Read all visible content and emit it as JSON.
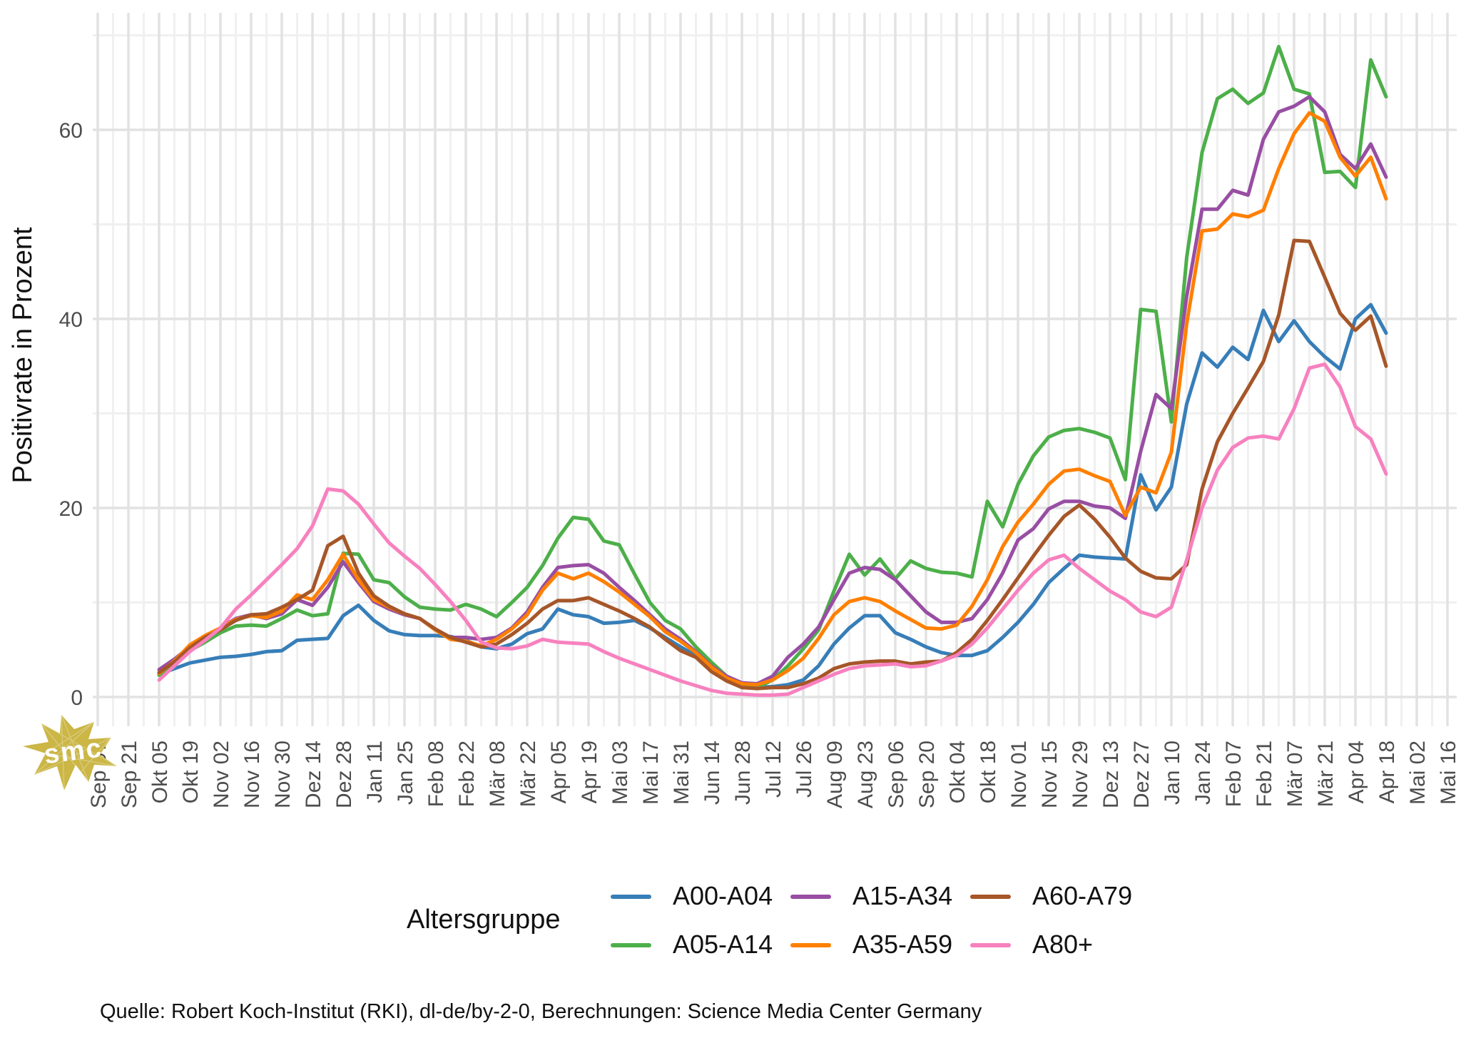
{
  "y_axis": {
    "label": "Positivrate in Prozent",
    "tick_labels": [
      "0",
      "20",
      "40",
      "60"
    ]
  },
  "x_axis": {
    "tick_labels": [
      "Sep 07",
      "Sep 21",
      "Okt 05",
      "Okt 19",
      "Nov 02",
      "Nov 16",
      "Nov 30",
      "Dez 14",
      "Dez 28",
      "Jan 11",
      "Jan 25",
      "Feb 08",
      "Feb 22",
      "Mär 08",
      "Mär 22",
      "Apr 05",
      "Apr 19",
      "Mai 03",
      "Mai 17",
      "Mai 31",
      "Jun 14",
      "Jun 28",
      "Jul 12",
      "Jul 26",
      "Aug 09",
      "Aug 23",
      "Sep 06",
      "Sep 20",
      "Okt 04",
      "Okt 18",
      "Nov 01",
      "Nov 15",
      "Nov 29",
      "Dez 13",
      "Dez 27",
      "Jan 10",
      "Jan 24",
      "Feb 07",
      "Feb 21",
      "Mär 07",
      "Mär 21",
      "Apr 04",
      "Apr 18",
      "Mai 02",
      "Mai 16"
    ]
  },
  "legend": {
    "title": "Altersgruppe",
    "items": [
      {
        "label": "A00-A04",
        "color": "#377EB8",
        "col": 0,
        "row": 0
      },
      {
        "label": "A05-A14",
        "color": "#4DAF4A",
        "col": 0,
        "row": 1
      },
      {
        "label": "A15-A34",
        "color": "#984EA3",
        "col": 1,
        "row": 0
      },
      {
        "label": "A35-A59",
        "color": "#FF7F00",
        "col": 1,
        "row": 1
      },
      {
        "label": "A60-A79",
        "color": "#A65628",
        "col": 2,
        "row": 0
      },
      {
        "label": "A80+",
        "color": "#F781BF",
        "col": 2,
        "row": 1
      }
    ]
  },
  "caption": "Quelle: Robert Koch-Institut (RKI), dl-de/by-2-0, Berechnungen: Science Media Center Germany",
  "watermark": {
    "text": "smc",
    "color": "#CBB646"
  },
  "chart_data": {
    "type": "line",
    "title": "",
    "xlabel": "",
    "ylabel": "Positivrate in Prozent",
    "legend_title": "Altersgruppe",
    "legend_position": "bottom",
    "grid": true,
    "ylim": [
      -3,
      72
    ],
    "yticks_major": [
      0,
      20,
      40,
      60
    ],
    "yticks_minor": [
      10,
      30,
      50,
      70
    ],
    "x_tick_labels": [
      "Sep 07",
      "Sep 21",
      "Okt 05",
      "Okt 19",
      "Nov 02",
      "Nov 16",
      "Nov 30",
      "Dez 14",
      "Dez 28",
      "Jan 11",
      "Jan 25",
      "Feb 08",
      "Feb 22",
      "Mär 08",
      "Mär 22",
      "Apr 05",
      "Apr 19",
      "Mai 03",
      "Mai 17",
      "Mai 31",
      "Jun 14",
      "Jun 28",
      "Jul 12",
      "Jul 26",
      "Aug 09",
      "Aug 23",
      "Sep 06",
      "Sep 20",
      "Okt 04",
      "Okt 18",
      "Nov 01",
      "Nov 15",
      "Nov 29",
      "Dez 13",
      "Dez 27",
      "Jan 10",
      "Jan 24",
      "Feb 07",
      "Feb 21",
      "Mär 07",
      "Mär 21",
      "Apr 04",
      "Apr 18",
      "Mai 02",
      "Mai 16"
    ],
    "x_weeks_per_tick": 2,
    "data_start_tick_index": 2,
    "x": [
      "2020-10-05",
      "2020-10-12",
      "2020-10-19",
      "2020-10-26",
      "2020-11-02",
      "2020-11-09",
      "2020-11-16",
      "2020-11-23",
      "2020-11-30",
      "2020-12-07",
      "2020-12-14",
      "2020-12-21",
      "2020-12-28",
      "2021-01-04",
      "2021-01-11",
      "2021-01-18",
      "2021-01-25",
      "2021-02-01",
      "2021-02-08",
      "2021-02-15",
      "2021-02-22",
      "2021-03-01",
      "2021-03-08",
      "2021-03-15",
      "2021-03-22",
      "2021-03-29",
      "2021-04-05",
      "2021-04-12",
      "2021-04-19",
      "2021-04-26",
      "2021-05-03",
      "2021-05-10",
      "2021-05-17",
      "2021-05-24",
      "2021-05-31",
      "2021-06-07",
      "2021-06-14",
      "2021-06-21",
      "2021-06-28",
      "2021-07-05",
      "2021-07-12",
      "2021-07-19",
      "2021-07-26",
      "2021-08-02",
      "2021-08-09",
      "2021-08-16",
      "2021-08-23",
      "2021-08-30",
      "2021-09-06",
      "2021-09-13",
      "2021-09-20",
      "2021-09-27",
      "2021-10-04",
      "2021-10-11",
      "2021-10-18",
      "2021-10-25",
      "2021-11-01",
      "2021-11-08",
      "2021-11-15",
      "2021-11-22",
      "2021-11-29",
      "2021-12-06",
      "2021-12-13",
      "2021-12-20",
      "2021-12-27",
      "2022-01-03",
      "2022-01-10",
      "2022-01-17",
      "2022-01-24",
      "2022-01-31",
      "2022-02-07",
      "2022-02-14",
      "2022-02-21",
      "2022-02-28",
      "2022-03-07",
      "2022-03-14",
      "2022-03-21",
      "2022-03-28",
      "2022-04-04",
      "2022-04-11",
      "2022-04-18"
    ],
    "series": [
      {
        "name": "A00-A04",
        "color": "#377EB8",
        "values": [
          2.4,
          3.0,
          3.6,
          3.9,
          4.2,
          4.3,
          4.5,
          4.8,
          4.9,
          6.0,
          6.1,
          6.2,
          8.6,
          9.7,
          8.1,
          7.0,
          6.6,
          6.5,
          6.5,
          6.4,
          6.0,
          5.3,
          5.1,
          5.6,
          6.7,
          7.2,
          9.3,
          8.7,
          8.5,
          7.8,
          7.9,
          8.1,
          7.3,
          6.3,
          5.3,
          4.4,
          3.2,
          2.0,
          1.3,
          1.0,
          1.1,
          1.3,
          1.8,
          3.3,
          5.6,
          7.3,
          8.6,
          8.6,
          6.8,
          6.1,
          5.3,
          4.7,
          4.4,
          4.4,
          4.9,
          6.3,
          7.9,
          9.8,
          12.1,
          13.6,
          15.0,
          14.8,
          14.7,
          14.6,
          23.5,
          19.8,
          22.2,
          31.0,
          36.4,
          34.9,
          37.0,
          35.7,
          40.9,
          37.6,
          39.8,
          37.6,
          36.0,
          34.7,
          40.0,
          41.5,
          38.5
        ]
      },
      {
        "name": "A05-A14",
        "color": "#4DAF4A",
        "values": [
          2.3,
          3.5,
          4.9,
          5.8,
          6.8,
          7.5,
          7.6,
          7.5,
          8.3,
          9.2,
          8.6,
          8.8,
          15.2,
          15.1,
          12.4,
          12.1,
          10.6,
          9.5,
          9.3,
          9.2,
          9.8,
          9.3,
          8.5,
          10.0,
          11.6,
          13.9,
          16.8,
          19.0,
          18.8,
          16.5,
          16.1,
          13.0,
          10.0,
          8.1,
          7.2,
          5.3,
          3.7,
          2.2,
          1.3,
          1.0,
          1.8,
          3.3,
          5.1,
          7.1,
          11.2,
          15.1,
          12.9,
          14.6,
          12.5,
          14.4,
          13.6,
          13.2,
          13.1,
          12.7,
          20.7,
          18.0,
          22.5,
          25.5,
          27.5,
          28.2,
          28.4,
          28.0,
          27.4,
          23.0,
          41.0,
          40.8,
          29.1,
          46.5,
          57.6,
          63.3,
          64.3,
          62.8,
          63.9,
          68.8,
          64.3,
          63.8,
          55.5,
          55.6,
          53.9,
          67.4,
          63.5
        ]
      },
      {
        "name": "A15-A34",
        "color": "#984EA3",
        "values": [
          2.9,
          4.0,
          5.3,
          6.2,
          7.3,
          8.3,
          8.7,
          8.3,
          8.8,
          10.3,
          9.7,
          11.6,
          14.3,
          12.1,
          10.1,
          9.3,
          8.7,
          8.3,
          7.1,
          6.3,
          6.3,
          6.1,
          6.3,
          7.3,
          9.0,
          11.6,
          13.7,
          13.9,
          14.0,
          13.1,
          11.6,
          10.2,
          8.7,
          7.2,
          6.1,
          4.8,
          3.3,
          2.2,
          1.5,
          1.4,
          2.2,
          4.2,
          5.6,
          7.4,
          10.3,
          13.1,
          13.7,
          13.5,
          12.4,
          10.7,
          9.0,
          7.9,
          7.9,
          8.3,
          10.3,
          13.1,
          16.6,
          17.8,
          19.9,
          20.7,
          20.7,
          20.2,
          20.0,
          18.9,
          26.0,
          32.0,
          30.5,
          42.4,
          51.6,
          51.6,
          53.6,
          53.1,
          59.0,
          61.9,
          62.5,
          63.5,
          61.9,
          57.4,
          55.9,
          58.5,
          55.0
        ]
      },
      {
        "name": "A35-A59",
        "color": "#FF7F00",
        "values": [
          2.5,
          3.8,
          5.5,
          6.5,
          7.3,
          8.2,
          8.6,
          8.4,
          9.1,
          10.8,
          10.3,
          12.4,
          15.1,
          12.4,
          10.3,
          9.5,
          8.8,
          8.3,
          7.1,
          6.1,
          5.9,
          5.4,
          6.1,
          7.2,
          8.7,
          11.3,
          13.1,
          12.5,
          13.1,
          12.2,
          11.1,
          9.8,
          8.5,
          6.9,
          5.9,
          4.7,
          3.2,
          2.0,
          1.4,
          1.3,
          1.8,
          2.8,
          4.1,
          6.2,
          8.7,
          10.1,
          10.5,
          10.1,
          9.1,
          8.2,
          7.3,
          7.2,
          7.6,
          9.6,
          12.4,
          15.9,
          18.5,
          20.4,
          22.5,
          23.9,
          24.1,
          23.4,
          22.8,
          19.2,
          22.2,
          21.6,
          25.9,
          39.5,
          49.3,
          49.5,
          51.1,
          50.8,
          51.5,
          55.9,
          59.6,
          61.8,
          60.9,
          57.1,
          55.1,
          57.1,
          52.7
        ]
      },
      {
        "name": "A60-A79",
        "color": "#A65628",
        "values": [
          2.6,
          3.7,
          5.2,
          6.3,
          7.1,
          8.1,
          8.7,
          8.8,
          9.5,
          10.3,
          11.3,
          16.0,
          17.0,
          13.1,
          10.7,
          9.6,
          8.8,
          8.3,
          7.2,
          6.3,
          5.8,
          5.3,
          5.6,
          6.6,
          7.8,
          9.3,
          10.2,
          10.2,
          10.5,
          9.8,
          9.1,
          8.3,
          7.4,
          6.1,
          4.9,
          4.2,
          2.7,
          1.7,
          1.0,
          0.9,
          1.0,
          1.0,
          1.4,
          2.0,
          3.0,
          3.5,
          3.7,
          3.8,
          3.8,
          3.5,
          3.7,
          3.8,
          4.7,
          6.1,
          8.1,
          10.3,
          12.6,
          14.9,
          17.1,
          19.1,
          20.3,
          18.8,
          16.9,
          14.7,
          13.3,
          12.6,
          12.5,
          14.0,
          22.0,
          27.0,
          30.0,
          32.7,
          35.5,
          40.4,
          48.3,
          48.2,
          44.4,
          40.6,
          38.8,
          40.3,
          35.0
        ]
      },
      {
        "name": "A80+",
        "color": "#F781BF",
        "values": [
          1.8,
          3.3,
          4.8,
          6.0,
          7.3,
          9.3,
          10.8,
          12.4,
          14.0,
          15.7,
          18.1,
          22.0,
          21.8,
          20.4,
          18.3,
          16.3,
          14.9,
          13.6,
          11.9,
          10.1,
          8.1,
          5.8,
          5.2,
          5.1,
          5.4,
          6.1,
          5.8,
          5.7,
          5.6,
          4.8,
          4.1,
          3.5,
          2.9,
          2.3,
          1.7,
          1.2,
          0.7,
          0.4,
          0.3,
          0.2,
          0.2,
          0.3,
          1.0,
          1.7,
          2.4,
          3.0,
          3.3,
          3.4,
          3.5,
          3.2,
          3.3,
          3.8,
          4.4,
          5.6,
          7.3,
          9.3,
          11.3,
          13.1,
          14.5,
          15.0,
          13.6,
          12.4,
          11.2,
          10.3,
          9.0,
          8.5,
          9.5,
          14.5,
          20.0,
          24.0,
          26.4,
          27.4,
          27.6,
          27.3,
          30.5,
          34.8,
          35.2,
          32.8,
          28.6,
          27.3,
          23.6
        ]
      }
    ]
  }
}
